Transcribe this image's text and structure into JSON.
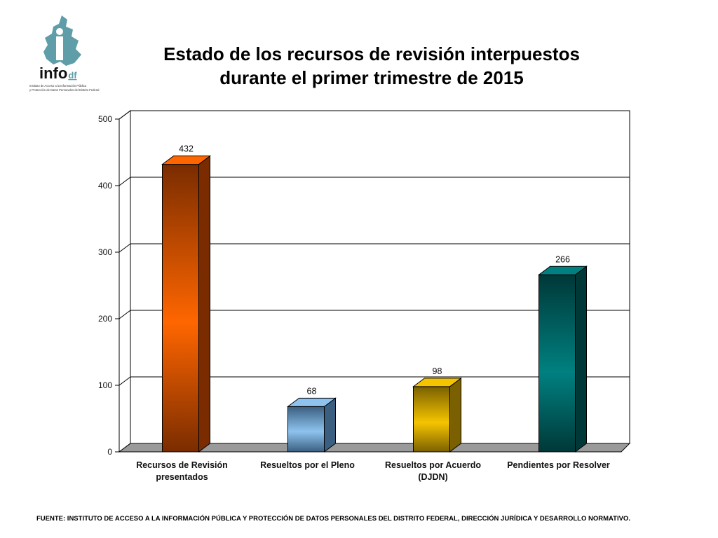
{
  "logo": {
    "wordmark_main": "info",
    "wordmark_suffix": "df",
    "tagline_line1": "Instituto de Acceso a la Información Pública",
    "tagline_line2": "y Protección de Datos Personales del Distrito Federal",
    "icon": "mexico-city-map-icon",
    "color": "#5f9ea8"
  },
  "title_lines": [
    "Estado de los recursos de revisión interpuestos",
    "durante el primer trimestre de 2015"
  ],
  "chart_data": {
    "type": "bar",
    "style": "3d",
    "categories": [
      [
        "Recursos de Revisión",
        "presentados"
      ],
      [
        "Resueltos por el Pleno"
      ],
      [
        "Resueltos por Acuerdo",
        "(DJDN)"
      ],
      [
        "Pendientes por Resolver"
      ]
    ],
    "values": [
      432,
      68,
      98,
      266
    ],
    "data_labels": [
      "432",
      "68",
      "98",
      "266"
    ],
    "ylim": [
      0,
      500
    ],
    "yticks": [
      0,
      100,
      200,
      300,
      400,
      500
    ],
    "ytick_labels": [
      "0",
      "100",
      "200",
      "300",
      "400",
      "500"
    ],
    "grid": true,
    "legend": false,
    "bar_colors": [
      "#ff6600",
      "#8ec3ef",
      "#f5c400",
      "#008080"
    ],
    "bar_dark_colors": [
      "#7a2c00",
      "#3a5f80",
      "#7a6000",
      "#003838"
    ]
  },
  "footnote": "FUENTE: INSTITUTO DE ACCESO A LA INFORMACIÓN PÚBLICA Y PROTECCIÓN DE DATOS PERSONALES DEL DISTRITO FEDERAL, DIRECCIÓN JURÍDICA Y DESARROLLO NORMATIVO."
}
